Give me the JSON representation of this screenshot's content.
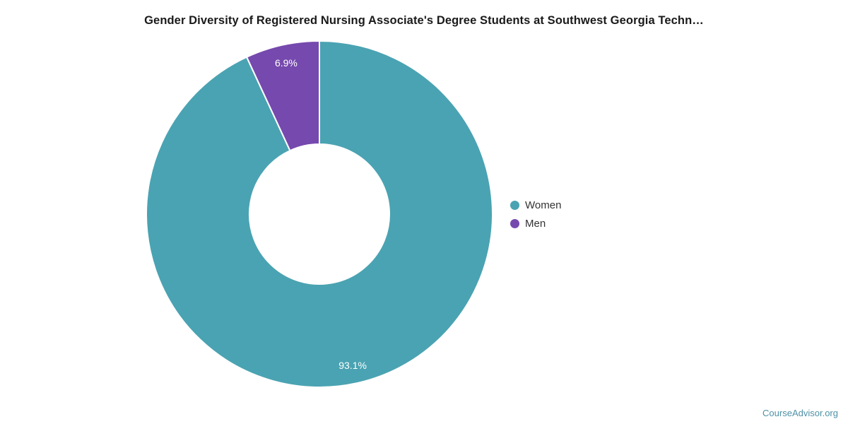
{
  "page": {
    "watermark": "CourseAdvisor.org"
  },
  "chart_data": {
    "type": "pie",
    "subtype": "donut",
    "title": "Gender Diversity of Registered Nursing Associate's Degree Students at Southwest Georgia Techn…",
    "series": [
      {
        "name": "Women",
        "value": 93.1,
        "label": "93.1%",
        "color": "#4aa3b2"
      },
      {
        "name": "Men",
        "value": 6.9,
        "label": "6.9%",
        "color": "#7649ae"
      }
    ],
    "start_angle_deg": 0,
    "direction": "clockwise",
    "legend_position": "right",
    "center": {
      "x": 452,
      "y": 303
    },
    "outer_radius": 245,
    "inner_radius": 99,
    "label_radius": 219,
    "label_color": "#ffffff",
    "slice_border_color": "#ffffff"
  },
  "legend": {
    "items": [
      {
        "label": "Women",
        "color": "#4aa3b2"
      },
      {
        "label": "Men",
        "color": "#7649ae"
      }
    ]
  },
  "colors": {
    "teal": "#4aa3b2",
    "purple": "#7649ae",
    "title_text": "#1a1a1a",
    "legend_text": "#333333",
    "watermark_text": "#4e90a6"
  }
}
